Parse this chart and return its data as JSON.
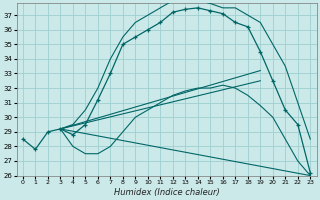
{
  "xlabel": "Humidex (Indice chaleur)",
  "xlim": [
    -0.5,
    23.5
  ],
  "ylim": [
    26,
    37.8
  ],
  "yticks": [
    26,
    27,
    28,
    29,
    30,
    31,
    32,
    33,
    34,
    35,
    36,
    37
  ],
  "xticks": [
    0,
    1,
    2,
    3,
    4,
    5,
    6,
    7,
    8,
    9,
    10,
    11,
    12,
    13,
    14,
    15,
    16,
    17,
    18,
    19,
    20,
    21,
    22,
    23
  ],
  "bg_color": "#cce9e9",
  "grid_color": "#9ecfcf",
  "line_color": "#006666",
  "main_line_x": [
    0,
    1,
    2,
    3,
    4,
    5,
    6,
    7,
    8,
    9,
    10,
    11,
    12,
    13,
    14,
    15,
    16,
    17,
    18,
    19,
    20,
    21,
    22,
    23
  ],
  "main_line_y": [
    28.5,
    27.8,
    29.0,
    29.2,
    28.8,
    29.5,
    31.2,
    33.0,
    35.0,
    35.5,
    36.0,
    36.5,
    37.2,
    37.4,
    37.5,
    37.3,
    37.1,
    36.5,
    36.2,
    34.5,
    32.5,
    30.5,
    29.5,
    26.2
  ],
  "upper_line_x": [
    3,
    4,
    5,
    6,
    7,
    8,
    9,
    10,
    11,
    12,
    13,
    14,
    15,
    16,
    17,
    18,
    19,
    20,
    21,
    22,
    23
  ],
  "upper_line_y": [
    29.2,
    29.5,
    30.5,
    32.0,
    34.0,
    35.5,
    36.5,
    37.0,
    37.5,
    38.0,
    38.0,
    38.0,
    37.8,
    37.5,
    37.5,
    37.0,
    36.5,
    35.0,
    33.5,
    31.0,
    28.5
  ],
  "lower_line_x": [
    3,
    4,
    5,
    6,
    7,
    8,
    9,
    10,
    11,
    12,
    13,
    14,
    15,
    16,
    17,
    18,
    19,
    20,
    21,
    22,
    23
  ],
  "lower_line_y": [
    29.2,
    28.0,
    27.5,
    27.5,
    28.0,
    29.0,
    30.0,
    30.5,
    31.0,
    31.5,
    31.8,
    32.0,
    32.0,
    32.2,
    32.0,
    31.5,
    30.8,
    30.0,
    28.5,
    27.0,
    26.0
  ],
  "fan_lines": [
    {
      "x": [
        3,
        19
      ],
      "y": [
        29.2,
        32.5
      ]
    },
    {
      "x": [
        3,
        19
      ],
      "y": [
        29.2,
        33.2
      ]
    },
    {
      "x": [
        3,
        23
      ],
      "y": [
        29.2,
        26.0
      ]
    }
  ]
}
